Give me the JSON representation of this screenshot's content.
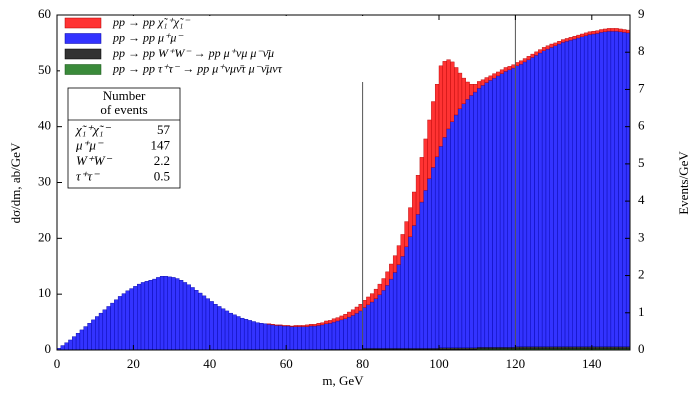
{
  "chart_data": {
    "type": "stacked_histogram",
    "xlabel": "m, GeV",
    "ylabel": "dσ/dm, ab/GeV",
    "y2label": "Events/GeV",
    "xlim": [
      0,
      150
    ],
    "xticks": [
      0,
      20,
      40,
      60,
      80,
      100,
      120,
      140
    ],
    "ylim": [
      0,
      60
    ],
    "yticks": [
      0,
      10,
      20,
      30,
      40,
      50,
      60
    ],
    "y2lim": [
      0,
      9
    ],
    "y2ticks": [
      0,
      1,
      2,
      3,
      4,
      5,
      6,
      7,
      8,
      9
    ],
    "vlines": [
      80,
      120
    ],
    "vline_color": "#555555",
    "legend": "upper left",
    "bins": [
      0,
      1,
      2,
      3,
      4,
      5,
      6,
      7,
      8,
      9,
      10,
      11,
      12,
      13,
      14,
      15,
      16,
      17,
      18,
      19,
      20,
      21,
      22,
      23,
      24,
      25,
      26,
      27,
      28,
      29,
      30,
      31,
      32,
      33,
      34,
      35,
      36,
      37,
      38,
      39,
      40,
      41,
      42,
      43,
      44,
      45,
      46,
      47,
      48,
      49,
      50,
      51,
      52,
      53,
      54,
      55,
      56,
      57,
      58,
      59,
      60,
      61,
      62,
      63,
      64,
      65,
      66,
      67,
      68,
      69,
      70,
      71,
      72,
      73,
      74,
      75,
      76,
      77,
      78,
      79,
      80,
      81,
      82,
      83,
      84,
      85,
      86,
      87,
      88,
      89,
      90,
      91,
      92,
      93,
      94,
      95,
      96,
      97,
      98,
      99,
      100,
      101,
      102,
      103,
      104,
      105,
      106,
      107,
      108,
      109,
      110,
      111,
      112,
      113,
      114,
      115,
      116,
      117,
      118,
      119,
      120,
      121,
      122,
      123,
      124,
      125,
      126,
      127,
      128,
      129,
      130,
      131,
      132,
      133,
      134,
      135,
      136,
      137,
      138,
      139,
      140,
      141,
      142,
      143,
      144,
      145,
      146,
      147,
      148,
      149,
      150
    ],
    "series": [
      {
        "name": "pp → pp χ̃₁⁺χ̃₁⁻",
        "color": "#ff3333",
        "edge": "#b00000",
        "values": [
          0,
          0,
          0,
          0,
          0,
          0,
          0,
          0,
          0,
          0,
          0,
          0,
          0,
          0,
          0,
          0,
          0,
          0,
          0,
          0,
          0,
          0,
          0,
          0,
          0,
          0,
          0,
          0,
          0,
          0,
          0,
          0,
          0,
          0,
          0,
          0,
          0,
          0,
          0,
          0,
          0,
          0,
          0,
          0,
          0,
          0,
          0,
          0,
          0,
          0,
          0,
          0,
          0,
          0,
          0,
          0.1,
          0.1,
          0.1,
          0.1,
          0.1,
          0.1,
          0.1,
          0.2,
          0.2,
          0.2,
          0.3,
          0.3,
          0.3,
          0.4,
          0.4,
          0.5,
          0.5,
          0.6,
          0.6,
          0.7,
          0.8,
          0.9,
          1.0,
          1.1,
          1.2,
          1.3,
          1.4,
          1.5,
          1.7,
          1.9,
          2.1,
          2.4,
          2.7,
          3.0,
          3.4,
          3.9,
          4.5,
          5.2,
          6.0,
          7.0,
          8.0,
          9.2,
          10.5,
          11.8,
          13.0,
          14.4,
          13.6,
          12.4,
          10.7,
          8.5,
          6.4,
          4.6,
          3.1,
          2.0,
          1.4,
          1.2,
          1.0,
          0.9,
          0.8,
          0.8,
          0.7,
          0.7,
          0.7,
          0.6,
          0.6,
          0.6,
          0.6,
          0.6,
          0.6,
          0.6,
          0.6,
          0.6,
          0.6,
          0.6,
          0.6,
          0.5,
          0.5,
          0.5,
          0.5,
          0.5,
          0.5,
          0.5,
          0.5,
          0.5,
          0.5,
          0.5,
          0.5,
          0.5,
          0.5,
          0.5,
          0.5,
          0.5,
          0.5,
          0.5,
          0.5
        ]
      },
      {
        "name": "pp → pp μ⁺μ⁻",
        "color": "#3333ff",
        "edge": "#0000a0",
        "values": [
          0.3,
          0.8,
          1.3,
          1.8,
          2.4,
          3.0,
          3.6,
          4.2,
          4.8,
          5.4,
          6.0,
          6.6,
          7.2,
          7.8,
          8.4,
          9.0,
          9.6,
          10.1,
          10.6,
          11.0,
          11.4,
          11.8,
          12.1,
          12.3,
          12.5,
          12.7,
          13.0,
          13.2,
          13.2,
          13.1,
          13.0,
          12.8,
          12.5,
          12.1,
          11.7,
          11.2,
          10.7,
          10.2,
          9.7,
          9.2,
          8.7,
          8.2,
          7.8,
          7.4,
          7.0,
          6.6,
          6.3,
          6.0,
          5.7,
          5.5,
          5.3,
          5.1,
          4.9,
          4.8,
          4.7,
          4.6,
          4.5,
          4.4,
          4.4,
          4.3,
          4.3,
          4.2,
          4.2,
          4.2,
          4.2,
          4.2,
          4.3,
          4.3,
          4.4,
          4.5,
          4.6,
          4.7,
          4.9,
          5.1,
          5.3,
          5.5,
          5.8,
          6.1,
          6.5,
          6.9,
          7.3,
          7.8,
          8.3,
          8.9,
          9.6,
          10.4,
          11.3,
          12.4,
          13.6,
          15.0,
          16.5,
          18.2,
          20.0,
          22.0,
          24.0,
          26.2,
          28.3,
          30.4,
          32.4,
          34.3,
          36.1,
          37.7,
          39.2,
          40.5,
          41.7,
          42.8,
          43.7,
          44.5,
          45.2,
          45.8,
          46.4,
          46.9,
          47.4,
          47.8,
          48.2,
          48.6,
          49.0,
          49.4,
          49.7,
          50.0,
          50.3,
          50.6,
          51.0,
          51.4,
          51.8,
          52.2,
          52.6,
          53.0,
          53.3,
          53.6,
          53.9,
          54.2,
          54.5,
          54.7,
          54.9,
          55.1,
          55.3,
          55.5,
          55.7,
          55.9,
          56.0,
          56.1,
          56.3,
          56.4,
          56.5,
          56.5,
          56.5,
          56.4,
          56.3,
          56.2
        ]
      },
      {
        "name": "pp → pp W⁺W⁻ → pp μ⁺νμ μ⁻ν̄μ",
        "color": "#333333",
        "edge": "#000000",
        "values": [
          0,
          0,
          0,
          0,
          0,
          0,
          0,
          0,
          0,
          0,
          0,
          0,
          0,
          0,
          0,
          0,
          0,
          0,
          0,
          0,
          0,
          0,
          0,
          0,
          0,
          0,
          0,
          0,
          0,
          0,
          0,
          0,
          0,
          0,
          0,
          0,
          0,
          0,
          0,
          0,
          0,
          0,
          0,
          0,
          0,
          0,
          0,
          0,
          0,
          0,
          0,
          0,
          0,
          0,
          0,
          0,
          0,
          0,
          0,
          0,
          0,
          0,
          0,
          0,
          0,
          0,
          0,
          0,
          0,
          0,
          0.1,
          0.1,
          0.1,
          0.1,
          0.1,
          0.1,
          0.1,
          0.1,
          0.1,
          0.1,
          0.2,
          0.2,
          0.2,
          0.2,
          0.2,
          0.2,
          0.2,
          0.2,
          0.2,
          0.2,
          0.2,
          0.2,
          0.2,
          0.2,
          0.2,
          0.2,
          0.2,
          0.2,
          0.2,
          0.2,
          0.3,
          0.3,
          0.3,
          0.3,
          0.3,
          0.3,
          0.3,
          0.3,
          0.3,
          0.3,
          0.3,
          0.3,
          0.3,
          0.3,
          0.3,
          0.3,
          0.3,
          0.3,
          0.3,
          0.3,
          0.4,
          0.4,
          0.4,
          0.4,
          0.4,
          0.4,
          0.4,
          0.4,
          0.4,
          0.4,
          0.4,
          0.4,
          0.4,
          0.4,
          0.4,
          0.4,
          0.4,
          0.4,
          0.4,
          0.4,
          0.4,
          0.4,
          0.4,
          0.4,
          0.4,
          0.4,
          0.4,
          0.4,
          0.4,
          0.4
        ]
      },
      {
        "name": "pp → pp τ⁺τ⁻ → pp μ⁺νμν̄τ μ⁻ν̄μντ",
        "color": "#3a8a3a",
        "edge": "#105010",
        "values": [
          0,
          0,
          0,
          0,
          0,
          0,
          0,
          0,
          0,
          0,
          0,
          0,
          0,
          0,
          0,
          0,
          0,
          0,
          0,
          0,
          0,
          0,
          0,
          0,
          0,
          0,
          0,
          0,
          0,
          0,
          0,
          0,
          0,
          0,
          0,
          0,
          0,
          0,
          0,
          0,
          0,
          0,
          0,
          0,
          0,
          0,
          0,
          0,
          0,
          0,
          0,
          0,
          0,
          0,
          0,
          0,
          0,
          0,
          0,
          0,
          0,
          0,
          0,
          0,
          0,
          0,
          0,
          0,
          0,
          0,
          0,
          0,
          0,
          0,
          0,
          0,
          0,
          0,
          0,
          0,
          0.1,
          0.1,
          0.1,
          0.1,
          0.1,
          0.1,
          0.1,
          0.1,
          0.1,
          0.1,
          0.1,
          0.1,
          0.1,
          0.1,
          0.1,
          0.1,
          0.1,
          0.1,
          0.1,
          0.1,
          0.1,
          0.1,
          0.1,
          0.1,
          0.1,
          0.1,
          0.1,
          0.1,
          0.1,
          0.1,
          0.2,
          0.2,
          0.2,
          0.2,
          0.2,
          0.2,
          0.2,
          0.2,
          0.2,
          0.2,
          0.2,
          0.2,
          0.2,
          0.2,
          0.2,
          0.2,
          0.2,
          0.2,
          0.2,
          0.2,
          0.2,
          0.2,
          0.2,
          0.2,
          0.2,
          0.2,
          0.2,
          0.2,
          0.2,
          0.2,
          0.2,
          0.2,
          0.2,
          0.2,
          0.2,
          0.2,
          0.2,
          0.2,
          0.2,
          0.2
        ]
      }
    ],
    "inset_table": {
      "header": [
        "Number",
        "of events"
      ],
      "rows": [
        [
          "χ̃₁⁺χ̃₁⁻",
          57
        ],
        [
          "μ⁺μ⁻",
          147
        ],
        [
          "W⁺W⁻",
          2.2
        ],
        [
          "τ⁺τ⁻",
          0.5
        ]
      ]
    }
  }
}
